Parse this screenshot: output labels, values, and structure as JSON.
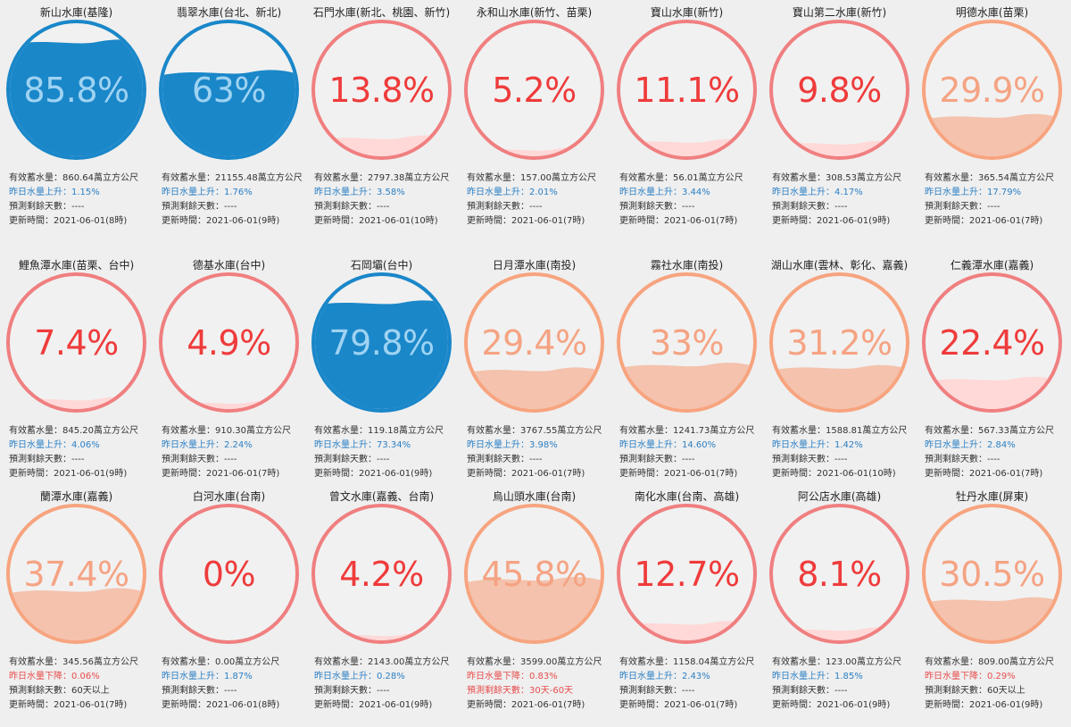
{
  "labels": {
    "storage": "有效蓄水量：",
    "rise": "昨日水量上升：",
    "fall": "昨日水量下降：",
    "days": "預測剩餘天數：",
    "updated": "更新時間："
  },
  "colors": {
    "blue": "#1a87c9",
    "blue_text": "#9fd3f2",
    "red": "#f07f80",
    "red_text": "#ef3b3b",
    "red_fill": "#ffd8d8",
    "orange": "#f7a47f",
    "orange_text": "#f5a383",
    "orange_fill": "#f4c2ad"
  },
  "reservoirs": [
    {
      "name": "新山水庫(基隆)",
      "percent": "85.8%",
      "level": 0.858,
      "theme": "blue",
      "storage": "860.64萬立方公尺",
      "change_type": "rise",
      "change": "1.15%",
      "days": "----",
      "updated": "2021-06-01(8時)"
    },
    {
      "name": "翡翠水庫(台北、新北)",
      "percent": "63%",
      "level": 0.63,
      "theme": "blue",
      "storage": "21155.48萬立方公尺",
      "change_type": "rise",
      "change": "1.76%",
      "days": "----",
      "updated": "2021-06-01(9時)"
    },
    {
      "name": "石門水庫(新北、桃園、新竹)",
      "percent": "13.8%",
      "level": 0.138,
      "theme": "red",
      "storage": "2797.38萬立方公尺",
      "change_type": "rise",
      "change": "3.58%",
      "days": "----",
      "updated": "2021-06-01(10時)"
    },
    {
      "name": "永和山水庫(新竹、苗栗)",
      "percent": "5.2%",
      "level": 0.052,
      "theme": "red",
      "storage": "157.00萬立方公尺",
      "change_type": "rise",
      "change": "2.01%",
      "days": "----",
      "updated": "2021-06-01(7時)"
    },
    {
      "name": "寶山水庫(新竹)",
      "percent": "11.1%",
      "level": 0.111,
      "theme": "red",
      "storage": "56.01萬立方公尺",
      "change_type": "rise",
      "change": "3.44%",
      "days": "----",
      "updated": "2021-06-01(7時)"
    },
    {
      "name": "寶山第二水庫(新竹)",
      "percent": "9.8%",
      "level": 0.098,
      "theme": "red",
      "storage": "308.53萬立方公尺",
      "change_type": "rise",
      "change": "4.17%",
      "days": "----",
      "updated": "2021-06-01(9時)"
    },
    {
      "name": "明德水庫(苗栗)",
      "percent": "29.9%",
      "level": 0.299,
      "theme": "orange",
      "storage": "365.54萬立方公尺",
      "change_type": "rise",
      "change": "17.79%",
      "days": "----",
      "updated": "2021-06-01(7時)"
    },
    {
      "name": "鯉魚潭水庫(苗栗、台中)",
      "percent": "7.4%",
      "level": 0.074,
      "theme": "red",
      "storage": "845.20萬立方公尺",
      "change_type": "rise",
      "change": "4.06%",
      "days": "----",
      "updated": "2021-06-01(9時)"
    },
    {
      "name": "德基水庫(台中)",
      "percent": "4.9%",
      "level": 0.049,
      "theme": "red",
      "storage": "910.30萬立方公尺",
      "change_type": "rise",
      "change": "2.24%",
      "days": "----",
      "updated": "2021-06-01(7時)"
    },
    {
      "name": "石岡壩(台中)",
      "percent": "79.8%",
      "level": 0.798,
      "theme": "blue",
      "storage": "119.18萬立方公尺",
      "change_type": "rise",
      "change": "73.34%",
      "days": "----",
      "updated": "2021-06-01(9時)"
    },
    {
      "name": "日月潭水庫(南投)",
      "percent": "29.4%",
      "level": 0.294,
      "theme": "orange",
      "storage": "3767.55萬立方公尺",
      "change_type": "rise",
      "change": "3.98%",
      "days": "----",
      "updated": "2021-06-01(7時)"
    },
    {
      "name": "霧社水庫(南投)",
      "percent": "33%",
      "level": 0.33,
      "theme": "orange",
      "storage": "1241.73萬立方公尺",
      "change_type": "rise",
      "change": "14.60%",
      "days": "----",
      "updated": "2021-06-01(7時)"
    },
    {
      "name": "湖山水庫(雲林、彰化、嘉義)",
      "percent": "31.2%",
      "level": 0.312,
      "theme": "orange",
      "storage": "1588.81萬立方公尺",
      "change_type": "rise",
      "change": "1.42%",
      "days": "----",
      "updated": "2021-06-01(10時)"
    },
    {
      "name": "仁義潭水庫(嘉義)",
      "percent": "22.4%",
      "level": 0.224,
      "theme": "red",
      "storage": "567.33萬立方公尺",
      "change_type": "rise",
      "change": "2.84%",
      "days": "----",
      "updated": "2021-06-01(7時)"
    },
    {
      "name": "蘭潭水庫(嘉義)",
      "percent": "37.4%",
      "level": 0.374,
      "theme": "orange",
      "storage": "345.56萬立方公尺",
      "change_type": "fall",
      "change": "0.06%",
      "days": "60天以上",
      "updated": "2021-06-01(7時)"
    },
    {
      "name": "白河水庫(台南)",
      "percent": "0%",
      "level": 0,
      "theme": "red",
      "storage": "0.00萬立方公尺",
      "change_type": "rise",
      "change": "1.87%",
      "days": "----",
      "updated": "2021-06-01(8時)"
    },
    {
      "name": "曾文水庫(嘉義、台南)",
      "percent": "4.2%",
      "level": 0.042,
      "theme": "red",
      "storage": "2143.00萬立方公尺",
      "change_type": "rise",
      "change": "0.28%",
      "days": "----",
      "updated": "2021-06-01(9時)"
    },
    {
      "name": "烏山頭水庫(台南)",
      "percent": "45.8%",
      "level": 0.458,
      "theme": "orange",
      "storage": "3599.00萬立方公尺",
      "change_type": "fall",
      "change": "0.83%",
      "days": "30天-60天",
      "updated": "2021-06-01(7時)"
    },
    {
      "name": "南化水庫(台南、高雄)",
      "percent": "12.7%",
      "level": 0.127,
      "theme": "red",
      "storage": "1158.04萬立方公尺",
      "change_type": "rise",
      "change": "2.43%",
      "days": "----",
      "updated": "2021-06-01(7時)"
    },
    {
      "name": "阿公店水庫(高雄)",
      "percent": "8.1%",
      "level": 0.081,
      "theme": "red",
      "storage": "123.00萬立方公尺",
      "change_type": "rise",
      "change": "1.85%",
      "days": "----",
      "updated": "2021-06-01(9時)"
    },
    {
      "name": "牡丹水庫(屏東)",
      "percent": "30.5%",
      "level": 0.305,
      "theme": "orange",
      "storage": "809.00萬立方公尺",
      "change_type": "fall",
      "change": "0.29%",
      "days": "60天以上",
      "updated": "2021-06-01(9時)"
    }
  ]
}
